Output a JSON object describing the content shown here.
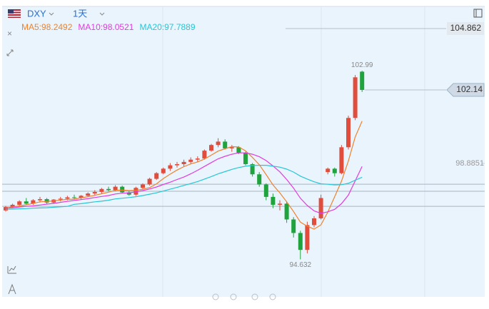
{
  "header": {
    "symbol": "DXY",
    "interval": "1天"
  },
  "chart_data": {
    "type": "candlestick",
    "up_color": "#e14d3c",
    "down_color": "#1fa33c",
    "open": [
      96.8,
      96.95,
      97.05,
      97.2,
      97.1,
      97.25,
      97.3,
      97.15,
      97.28,
      97.32,
      97.38,
      97.35,
      97.45,
      97.55,
      97.62,
      97.75,
      97.7,
      97.85,
      97.6,
      97.5,
      97.8,
      97.95,
      98.2,
      98.45,
      98.65,
      98.8,
      98.85,
      98.95,
      99.05,
      99.1,
      99.45,
      99.7,
      99.85,
      99.55,
      99.6,
      99.35,
      98.85,
      98.4,
      97.95,
      97.4,
      97.05,
      97.1,
      96.4,
      95.8,
      95.05,
      96.15,
      96.45,
      98.5,
      98.65,
      98.45,
      99.6,
      100.9,
      102.95
    ],
    "high": [
      97.0,
      97.1,
      97.25,
      97.35,
      97.3,
      97.4,
      97.35,
      97.3,
      97.4,
      97.45,
      97.5,
      97.48,
      97.6,
      97.7,
      97.8,
      97.85,
      97.92,
      97.9,
      97.65,
      97.85,
      98.0,
      98.25,
      98.5,
      98.7,
      98.9,
      98.95,
      99.05,
      99.15,
      99.2,
      99.5,
      99.75,
      100.0,
      99.95,
      99.7,
      99.65,
      99.4,
      98.9,
      98.5,
      98.0,
      97.55,
      97.25,
      97.2,
      96.5,
      95.9,
      96.3,
      96.55,
      97.5,
      98.7,
      98.7,
      99.7,
      101.0,
      102.8,
      102.99
    ],
    "low": [
      96.75,
      96.9,
      97.0,
      97.05,
      97.05,
      97.15,
      97.1,
      97.1,
      97.2,
      97.25,
      97.3,
      97.28,
      97.4,
      97.45,
      97.55,
      97.65,
      97.65,
      97.55,
      97.45,
      97.45,
      97.75,
      97.9,
      98.15,
      98.4,
      98.55,
      98.7,
      98.75,
      98.85,
      98.95,
      99.05,
      99.4,
      99.6,
      99.5,
      99.4,
      99.3,
      98.8,
      98.3,
      97.85,
      97.25,
      96.9,
      96.8,
      96.25,
      95.6,
      94.632,
      94.9,
      96.05,
      96.4,
      98.4,
      98.3,
      98.4,
      99.5,
      100.8,
      102.05
    ],
    "close": [
      96.95,
      97.05,
      97.2,
      97.1,
      97.25,
      97.3,
      97.15,
      97.28,
      97.32,
      97.38,
      97.35,
      97.45,
      97.55,
      97.62,
      97.75,
      97.7,
      97.85,
      97.6,
      97.5,
      97.8,
      97.95,
      98.2,
      98.45,
      98.65,
      98.8,
      98.85,
      98.95,
      99.05,
      99.1,
      99.45,
      99.7,
      99.85,
      99.55,
      99.6,
      99.35,
      98.85,
      98.4,
      97.95,
      97.4,
      97.05,
      97.1,
      96.4,
      95.8,
      95.05,
      96.15,
      96.45,
      97.35,
      98.65,
      98.45,
      99.6,
      100.9,
      102.7,
      102.14
    ],
    "series": [
      {
        "name": "MA5:98.2492",
        "color": "#f0822a",
        "values": [
          96.9,
          96.95,
          97.0,
          97.05,
          97.11,
          97.18,
          97.2,
          97.22,
          97.26,
          97.29,
          97.3,
          97.36,
          97.41,
          97.47,
          97.54,
          97.61,
          97.69,
          97.7,
          97.68,
          97.69,
          97.74,
          97.81,
          97.98,
          98.21,
          98.41,
          98.59,
          98.74,
          98.86,
          98.95,
          99.08,
          99.25,
          99.43,
          99.53,
          99.63,
          99.61,
          99.44,
          99.15,
          98.83,
          98.39,
          97.93,
          97.58,
          97.18,
          96.75,
          96.28,
          96.1,
          95.97,
          96.16,
          96.73,
          97.41,
          98.1,
          98.99,
          100.06,
          100.76
        ]
      },
      {
        "name": "MA10:98.0521",
        "color": "#e03ce0",
        "values": [
          96.9,
          96.92,
          96.95,
          96.98,
          97.0,
          97.04,
          97.08,
          97.11,
          97.16,
          97.2,
          97.24,
          97.28,
          97.32,
          97.37,
          97.42,
          97.46,
          97.53,
          97.56,
          97.58,
          97.62,
          97.68,
          97.75,
          97.84,
          97.95,
          98.05,
          98.17,
          98.28,
          98.42,
          98.58,
          98.75,
          98.92,
          99.09,
          99.2,
          99.29,
          99.35,
          99.35,
          99.29,
          99.18,
          99.01,
          98.77,
          98.51,
          98.17,
          97.79,
          97.34,
          97.02,
          96.78,
          96.67,
          96.74,
          96.85,
          97.1,
          97.48,
          98.11,
          98.75
        ]
      },
      {
        "name": "MA20:97.7889",
        "color": "#27c6d6",
        "values": [
          96.85,
          96.86,
          96.87,
          96.88,
          96.9,
          96.91,
          96.92,
          96.94,
          96.96,
          96.98,
          97.07,
          97.1,
          97.14,
          97.18,
          97.21,
          97.25,
          97.31,
          97.34,
          97.37,
          97.41,
          97.46,
          97.52,
          97.58,
          97.66,
          97.74,
          97.82,
          97.91,
          97.99,
          98.08,
          98.19,
          98.3,
          98.42,
          98.52,
          98.62,
          98.7,
          98.76,
          98.79,
          98.8,
          98.8,
          98.76,
          98.72,
          98.63,
          98.5,
          98.32,
          98.19,
          98.07,
          97.98,
          97.96,
          97.93,
          97.94,
          98.0,
          98.14,
          98.27
        ]
      }
    ],
    "ylim": [
      93,
      105.81
    ],
    "yticks": [
      98.8851,
      104.862
    ],
    "last_value": 102.14,
    "high_label": 102.99,
    "low_label": 94.632,
    "reference_lines": [
      97.96,
      97.65,
      96.98
    ]
  }
}
